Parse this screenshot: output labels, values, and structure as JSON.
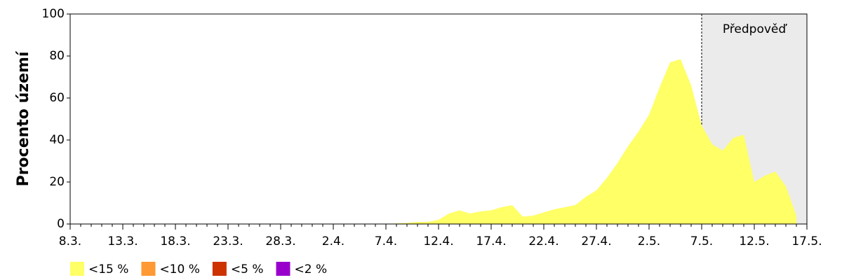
{
  "chart_data": {
    "type": "area",
    "y_label": "Procento území",
    "categories": [
      "8.3.",
      null,
      null,
      null,
      null,
      "13.3.",
      null,
      null,
      null,
      null,
      "18.3.",
      null,
      null,
      null,
      null,
      "23.3.",
      null,
      null,
      null,
      null,
      "28.3.",
      null,
      null,
      null,
      null,
      "2.4.",
      null,
      null,
      null,
      null,
      "7.4.",
      null,
      null,
      null,
      null,
      "12.4.",
      null,
      null,
      null,
      null,
      "17.4.",
      null,
      null,
      null,
      null,
      "22.4.",
      null,
      null,
      null,
      null,
      "27.4.",
      null,
      null,
      null,
      null,
      "2.5.",
      null,
      null,
      null,
      null,
      "7.5.",
      null,
      null,
      null,
      null,
      "12.5.",
      null,
      null,
      null,
      null,
      "17.5."
    ],
    "series": [
      {
        "name": "<15 %",
        "color": "#ffff66",
        "values": [
          0,
          0,
          0,
          0,
          0,
          0,
          0,
          0,
          0,
          0,
          0,
          0,
          0,
          0,
          0,
          0,
          0,
          0,
          0,
          0,
          0,
          0,
          0,
          0,
          0,
          0,
          0,
          0,
          0,
          0,
          0,
          0.3,
          0.5,
          1,
          1,
          2,
          5,
          6.5,
          5,
          6,
          6.5,
          8,
          9,
          3.5,
          4,
          5.5,
          7,
          8,
          9,
          13,
          16,
          22,
          29,
          37,
          44,
          52,
          65,
          77,
          78.5,
          66,
          47,
          38,
          35,
          41,
          42.5,
          20,
          23,
          25,
          18,
          4,
          null
        ]
      },
      {
        "name": "<10 %",
        "color": "#ff9933",
        "values": [
          0,
          0,
          0,
          0,
          0,
          0,
          0,
          0,
          0,
          0,
          0,
          0,
          0,
          0,
          0,
          0,
          0,
          0,
          0,
          0,
          0,
          0,
          0,
          0,
          0,
          0,
          0,
          0,
          0,
          0,
          0,
          0,
          0,
          0,
          0,
          0,
          0,
          0,
          0,
          0,
          0,
          0,
          0,
          0,
          0,
          0,
          0,
          0,
          0,
          0,
          0,
          0,
          0,
          0,
          0,
          0,
          0,
          0,
          0,
          0,
          0,
          0,
          0,
          0,
          0,
          0,
          0,
          0,
          0,
          0,
          0
        ]
      },
      {
        "name": "<5 %",
        "color": "#cc3300",
        "values": [
          0,
          0,
          0,
          0,
          0,
          0,
          0,
          0,
          0,
          0,
          0,
          0,
          0,
          0,
          0,
          0,
          0,
          0,
          0,
          0,
          0,
          0,
          0,
          0,
          0,
          0,
          0,
          0,
          0,
          0,
          0,
          0,
          0,
          0,
          0,
          0,
          0,
          0,
          0,
          0,
          0,
          0,
          0,
          0,
          0,
          0,
          0,
          0,
          0,
          0,
          0,
          0,
          0,
          0,
          0,
          0,
          0,
          0,
          0,
          0,
          0,
          0,
          0,
          0,
          0,
          0,
          0,
          0,
          0,
          0,
          0
        ]
      },
      {
        "name": "<2 %",
        "color": "#9900cc",
        "values": [
          0,
          0,
          0,
          0,
          0,
          0,
          0,
          0,
          0,
          0,
          0,
          0,
          0,
          0,
          0,
          0,
          0,
          0,
          0,
          0,
          0,
          0,
          0,
          0,
          0,
          0,
          0,
          0,
          0,
          0,
          0,
          0,
          0,
          0,
          0,
          0,
          0,
          0,
          0,
          0,
          0,
          0,
          0,
          0,
          0,
          0,
          0,
          0,
          0,
          0,
          0,
          0,
          0,
          0,
          0,
          0,
          0,
          0,
          0,
          0,
          0,
          0,
          0,
          0,
          0,
          0,
          0,
          0,
          0,
          0,
          0
        ]
      }
    ],
    "forecast": {
      "label": "Předpověď",
      "start": "7.5.",
      "color": "#ebebeb"
    },
    "ylim": [
      0,
      100
    ],
    "yticks": [
      0,
      20,
      40,
      60,
      80,
      100
    ],
    "grid": false
  }
}
